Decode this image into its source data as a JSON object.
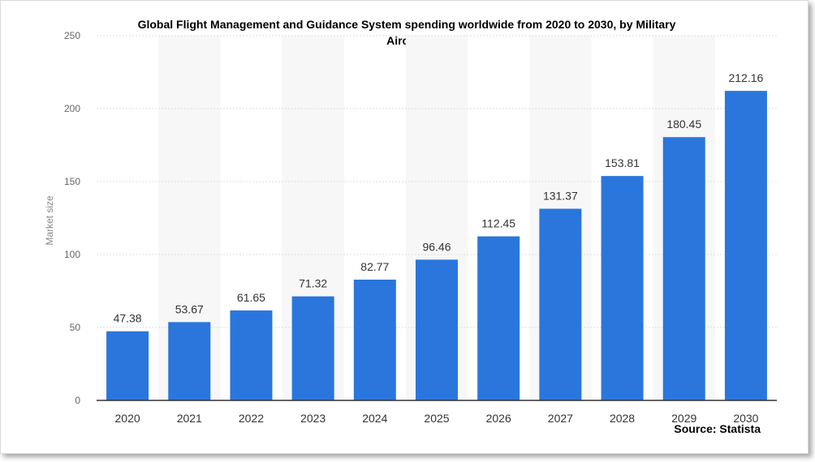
{
  "chart_data": {
    "type": "bar",
    "title": "Global Flight Management and Guidance System spending worldwide from 2020 to 2030, by Military Aircraft",
    "xlabel": "",
    "ylabel": "Market size",
    "categories": [
      "2020",
      "2021",
      "2022",
      "2023",
      "2024",
      "2025",
      "2026",
      "2027",
      "2028",
      "2029",
      "2030"
    ],
    "values": [
      47.38,
      53.67,
      61.65,
      71.32,
      82.77,
      96.46,
      112.45,
      131.37,
      153.81,
      180.45,
      212.16
    ],
    "value_labels": [
      "47.38",
      "53.67",
      "61.65",
      "71.32",
      "82.77",
      "96.46",
      "112.45",
      "131.37",
      "153.81",
      "180.45",
      "212.16"
    ],
    "ylim": [
      0,
      250
    ],
    "yticks": [
      "0",
      "50",
      "100",
      "150",
      "200",
      "250"
    ],
    "grid": true,
    "legend": "none",
    "bar_color": "#2a76dd",
    "source": "Source: Statista"
  }
}
